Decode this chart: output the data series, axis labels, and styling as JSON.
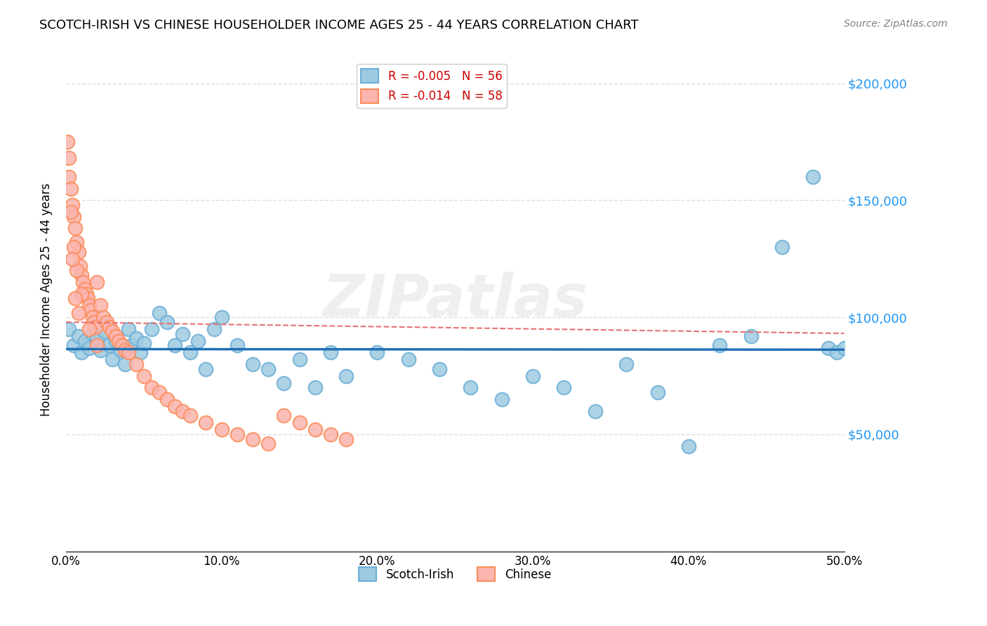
{
  "title": "SCOTCH-IRISH VS CHINESE HOUSEHOLDER INCOME AGES 25 - 44 YEARS CORRELATION CHART",
  "source": "Source: ZipAtlas.com",
  "ylabel": "Householder Income Ages 25 - 44 years",
  "watermark": "ZIPatlas",
  "scotch_irish": {
    "label": "Scotch-Irish",
    "R": -0.005,
    "N": 56,
    "color": "#6baed6",
    "color_fill": "#9ecae1",
    "x": [
      0.2,
      0.5,
      0.8,
      1.0,
      1.2,
      1.5,
      1.7,
      2.0,
      2.2,
      2.5,
      2.8,
      3.0,
      3.2,
      3.5,
      3.8,
      4.0,
      4.2,
      4.5,
      4.8,
      5.0,
      5.5,
      6.0,
      6.5,
      7.0,
      7.5,
      8.0,
      8.5,
      9.0,
      9.5,
      10.0,
      11.0,
      12.0,
      13.0,
      14.0,
      15.0,
      16.0,
      17.0,
      18.0,
      20.0,
      22.0,
      24.0,
      26.0,
      28.0,
      30.0,
      32.0,
      34.0,
      36.0,
      38.0,
      40.0,
      42.0,
      44.0,
      46.0,
      48.0,
      49.0,
      49.5,
      50.0
    ],
    "y": [
      95000,
      88000,
      92000,
      85000,
      90000,
      87000,
      93000,
      91000,
      86000,
      94000,
      88000,
      82000,
      90000,
      86000,
      80000,
      95000,
      88000,
      91000,
      85000,
      89000,
      95000,
      102000,
      98000,
      88000,
      93000,
      85000,
      90000,
      78000,
      95000,
      100000,
      88000,
      80000,
      78000,
      72000,
      82000,
      70000,
      85000,
      75000,
      85000,
      82000,
      78000,
      70000,
      65000,
      75000,
      70000,
      60000,
      80000,
      68000,
      45000,
      88000,
      92000,
      130000,
      160000,
      87000,
      85000,
      87000
    ]
  },
  "chinese": {
    "label": "Chinese",
    "R": -0.014,
    "N": 58,
    "color": "#fc8d59",
    "color_fill": "#fbb4ae",
    "x": [
      0.1,
      0.2,
      0.3,
      0.4,
      0.5,
      0.6,
      0.7,
      0.8,
      0.9,
      1.0,
      1.1,
      1.2,
      1.3,
      1.4,
      1.5,
      1.6,
      1.7,
      1.8,
      1.9,
      2.0,
      2.2,
      2.4,
      2.6,
      2.8,
      3.0,
      3.2,
      3.4,
      3.6,
      3.8,
      4.0,
      4.5,
      5.0,
      5.5,
      6.0,
      6.5,
      7.0,
      7.5,
      8.0,
      9.0,
      10.0,
      11.0,
      12.0,
      13.0,
      14.0,
      15.0,
      16.0,
      17.0,
      18.0,
      0.3,
      0.5,
      0.7,
      1.0,
      1.5,
      2.0,
      0.2,
      0.4,
      0.6,
      0.8
    ],
    "y": [
      175000,
      160000,
      155000,
      148000,
      143000,
      138000,
      132000,
      128000,
      122000,
      118000,
      115000,
      112000,
      110000,
      108000,
      105000,
      103000,
      100000,
      98000,
      96000,
      115000,
      105000,
      100000,
      98000,
      96000,
      94000,
      92000,
      90000,
      88000,
      86000,
      85000,
      80000,
      75000,
      70000,
      68000,
      65000,
      62000,
      60000,
      58000,
      55000,
      52000,
      50000,
      48000,
      46000,
      58000,
      55000,
      52000,
      50000,
      48000,
      145000,
      130000,
      120000,
      110000,
      95000,
      88000,
      168000,
      125000,
      108000,
      102000
    ]
  },
  "background_color": "#ffffff",
  "grid_color": "#dddddd",
  "trend_blue_color": "#2171b5",
  "trend_pink_color": "#e87070",
  "y_tick_labels": [
    "$50,000",
    "$100,000",
    "$150,000",
    "$200,000"
  ],
  "y_tick_values": [
    50000,
    100000,
    150000,
    200000
  ],
  "x_min": 0.0,
  "x_max": 50.0,
  "y_min": 0,
  "y_max": 215000
}
